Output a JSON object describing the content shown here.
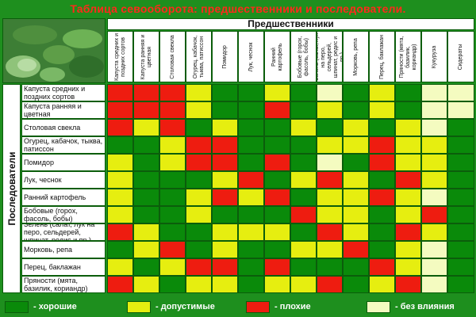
{
  "title": "Таблица севооборота: предшественники и последователи.",
  "header_predecessors": "Предшественники",
  "side_followers": "Последователи",
  "photo_icon": "vegetable-garden-photo",
  "colors": {
    "G": "#0a8a0a",
    "Y": "#e6ee10",
    "R": "#ee1c10",
    "W": "#f4fbc0",
    "border": "#0b5d0b",
    "background": "#1e8f1e",
    "title": "#ff2a1a"
  },
  "predecessors": [
    "Капуста средних и поздних сортов",
    "Капуста ранняя и цветная",
    "Столовая свекла",
    "Огурец, кабачок, тыква, патиссон",
    "Помидор",
    "Лук, чеснок",
    "Ранний картофель",
    "Бобовые (горох, фасоль, бобы)",
    "Зелень (салат, лук на перо, сельдерей, шпинат, редис и пр.)",
    "Морковь, репа",
    "Перец, баклажан",
    "Пряности (мята, базилик, кориандр)",
    "Кукуруза",
    "Сидераты"
  ],
  "followers": [
    "Капуста средних и поздних сортов",
    "Капуста ранняя и цветная",
    "Столовая свекла",
    "Огурец, кабачок, тыква, патиссон",
    "Помидор",
    "Лук, чеснок",
    "Ранний картофель",
    "Бобовые (горох, фасоль, бобы)",
    "Зелень (салат, лук на перо, сельдерей, шпинат, редис и пр.)",
    "Морковь, репа",
    "Перец, баклажан",
    "Пряности (мята, базилик, кориандр)"
  ],
  "grid": [
    [
      "R",
      "R",
      "R",
      "Y",
      "G",
      "G",
      "Y",
      "G",
      "W",
      "G",
      "Y",
      "G",
      "W",
      "W"
    ],
    [
      "R",
      "R",
      "R",
      "Y",
      "G",
      "G",
      "R",
      "G",
      "Y",
      "G",
      "Y",
      "G",
      "W",
      "W"
    ],
    [
      "R",
      "Y",
      "R",
      "G",
      "Y",
      "G",
      "G",
      "Y",
      "G",
      "Y",
      "G",
      "Y",
      "W",
      "G"
    ],
    [
      "G",
      "G",
      "Y",
      "R",
      "R",
      "G",
      "G",
      "G",
      "Y",
      "Y",
      "R",
      "Y",
      "Y",
      "G"
    ],
    [
      "Y",
      "G",
      "Y",
      "R",
      "R",
      "G",
      "R",
      "G",
      "W",
      "G",
      "R",
      "Y",
      "Y",
      "G"
    ],
    [
      "Y",
      "G",
      "G",
      "G",
      "Y",
      "R",
      "G",
      "Y",
      "R",
      "Y",
      "G",
      "R",
      "Y",
      "G"
    ],
    [
      "Y",
      "G",
      "G",
      "Y",
      "R",
      "Y",
      "R",
      "G",
      "Y",
      "Y",
      "R",
      "Y",
      "W",
      "G"
    ],
    [
      "Y",
      "G",
      "G",
      "Y",
      "G",
      "G",
      "G",
      "R",
      "Y",
      "Y",
      "G",
      "Y",
      "R",
      "G"
    ],
    [
      "R",
      "Y",
      "G",
      "G",
      "Y",
      "Y",
      "Y",
      "G",
      "R",
      "Y",
      "G",
      "R",
      "Y",
      "G"
    ],
    [
      "G",
      "Y",
      "R",
      "G",
      "Y",
      "G",
      "G",
      "Y",
      "Y",
      "R",
      "G",
      "Y",
      "W",
      "G"
    ],
    [
      "Y",
      "G",
      "Y",
      "R",
      "R",
      "G",
      "R",
      "G",
      "G",
      "G",
      "R",
      "Y",
      "W",
      "G"
    ],
    [
      "R",
      "Y",
      "G",
      "Y",
      "Y",
      "G",
      "Y",
      "Y",
      "R",
      "G",
      "Y",
      "R",
      "W",
      "G"
    ]
  ],
  "legend": [
    {
      "key": "G",
      "label": "- хорошие"
    },
    {
      "key": "Y",
      "label": "- допустимые"
    },
    {
      "key": "R",
      "label": "- плохие"
    },
    {
      "key": "W",
      "label": "- без влияния"
    }
  ]
}
